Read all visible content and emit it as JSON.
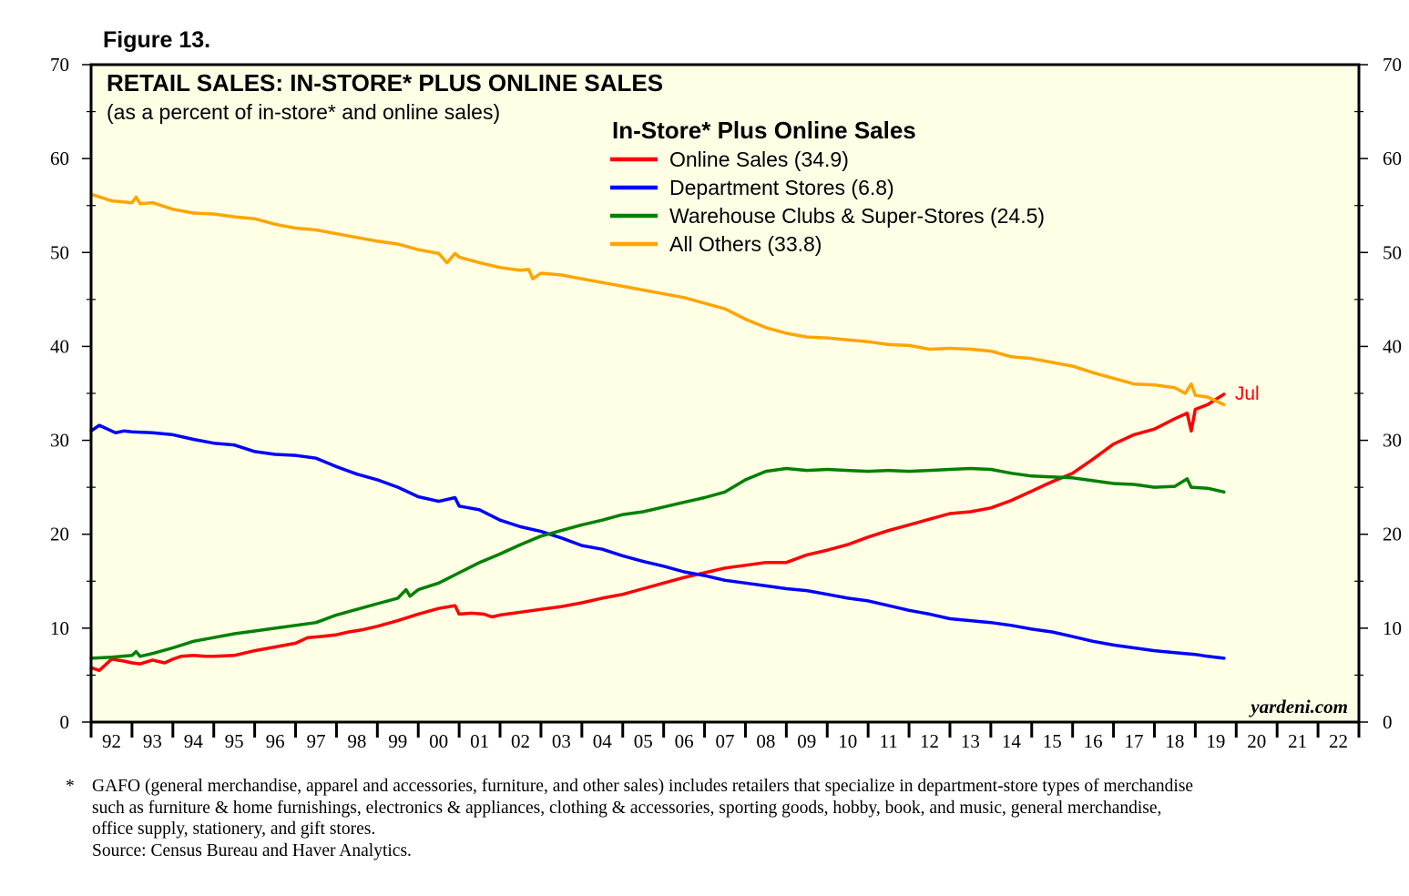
{
  "figure_label": "Figure 13.",
  "watermark": "yardeni.com",
  "footnote": {
    "marker": "*",
    "lines": [
      "GAFO (general merchandise, apparel and accessories, furniture, and other sales) includes retailers that specialize in department-store types of merchandise",
      "such as furniture & home furnishings, electronics & appliances, clothing & accessories, sporting goods, hobby, book, and music, general merchandise,",
      "office supply, stationery, and gift stores."
    ],
    "source": "Source: Census Bureau and Haver Analytics."
  },
  "chart_data": {
    "type": "line",
    "title": "RETAIL SALES: IN-STORE* PLUS ONLINE SALES",
    "subtitle": "(as a percent of in-store* and online sales)",
    "legend_title": "In-Store* Plus Online Sales",
    "legend_position": "top-center",
    "grid": false,
    "background_color": "#ffffe6",
    "ylim": [
      0,
      70
    ],
    "y_ticks": [
      0,
      10,
      20,
      30,
      40,
      50,
      60,
      70
    ],
    "y_ticks_both_sides": true,
    "x_range": [
      1992,
      2023
    ],
    "x_tick_labels": [
      "92",
      "93",
      "94",
      "95",
      "96",
      "97",
      "98",
      "99",
      "00",
      "01",
      "02",
      "03",
      "04",
      "05",
      "06",
      "07",
      "08",
      "09",
      "10",
      "11",
      "12",
      "13",
      "14",
      "15",
      "16",
      "17",
      "18",
      "19",
      "20",
      "21",
      "22"
    ],
    "annotation": {
      "text": "Jul",
      "color": "#ff0000",
      "x": 2019.7,
      "y": 34.9
    },
    "series": [
      {
        "name": "Online Sales (34.9)",
        "color": "#ff0000",
        "points": [
          [
            1992.0,
            5.8
          ],
          [
            1992.2,
            5.5
          ],
          [
            1992.5,
            6.7
          ],
          [
            1992.8,
            6.5
          ],
          [
            1993.0,
            6.3
          ],
          [
            1993.2,
            6.2
          ],
          [
            1993.5,
            6.6
          ],
          [
            1993.8,
            6.3
          ],
          [
            1994.0,
            6.7
          ],
          [
            1994.2,
            7.0
          ],
          [
            1994.5,
            7.1
          ],
          [
            1994.8,
            7.0
          ],
          [
            1995.0,
            7.0
          ],
          [
            1995.5,
            7.1
          ],
          [
            1996.0,
            7.6
          ],
          [
            1996.5,
            8.0
          ],
          [
            1997.0,
            8.4
          ],
          [
            1997.3,
            9.0
          ],
          [
            1997.6,
            9.1
          ],
          [
            1998.0,
            9.3
          ],
          [
            1998.3,
            9.6
          ],
          [
            1998.6,
            9.8
          ],
          [
            1999.0,
            10.2
          ],
          [
            1999.5,
            10.8
          ],
          [
            2000.0,
            11.5
          ],
          [
            2000.5,
            12.1
          ],
          [
            2000.9,
            12.4
          ],
          [
            2001.0,
            11.5
          ],
          [
            2001.3,
            11.6
          ],
          [
            2001.6,
            11.5
          ],
          [
            2001.8,
            11.2
          ],
          [
            2002.0,
            11.4
          ],
          [
            2002.5,
            11.7
          ],
          [
            2003.0,
            12.0
          ],
          [
            2003.5,
            12.3
          ],
          [
            2004.0,
            12.7
          ],
          [
            2004.5,
            13.2
          ],
          [
            2005.0,
            13.6
          ],
          [
            2005.5,
            14.2
          ],
          [
            2006.0,
            14.8
          ],
          [
            2006.5,
            15.4
          ],
          [
            2007.0,
            15.9
          ],
          [
            2007.5,
            16.4
          ],
          [
            2008.0,
            16.7
          ],
          [
            2008.5,
            17.0
          ],
          [
            2009.0,
            17.0
          ],
          [
            2009.5,
            17.8
          ],
          [
            2010.0,
            18.3
          ],
          [
            2010.5,
            18.9
          ],
          [
            2011.0,
            19.7
          ],
          [
            2011.5,
            20.4
          ],
          [
            2012.0,
            21.0
          ],
          [
            2012.5,
            21.6
          ],
          [
            2013.0,
            22.2
          ],
          [
            2013.5,
            22.4
          ],
          [
            2014.0,
            22.8
          ],
          [
            2014.5,
            23.6
          ],
          [
            2015.0,
            24.6
          ],
          [
            2015.5,
            25.6
          ],
          [
            2016.0,
            26.5
          ],
          [
            2016.5,
            28.0
          ],
          [
            2017.0,
            29.6
          ],
          [
            2017.5,
            30.6
          ],
          [
            2018.0,
            31.2
          ],
          [
            2018.5,
            32.3
          ],
          [
            2018.8,
            32.9
          ],
          [
            2018.9,
            31.0
          ],
          [
            2019.0,
            33.3
          ],
          [
            2019.3,
            33.8
          ],
          [
            2019.55,
            34.5
          ],
          [
            2019.7,
            34.9
          ]
        ]
      },
      {
        "name": "Department Stores (6.8)",
        "color": "#0000ff",
        "points": [
          [
            1992.0,
            31.0
          ],
          [
            1992.2,
            31.6
          ],
          [
            1992.4,
            31.2
          ],
          [
            1992.6,
            30.8
          ],
          [
            1992.8,
            31.0
          ],
          [
            1993.0,
            30.9
          ],
          [
            1993.5,
            30.8
          ],
          [
            1994.0,
            30.6
          ],
          [
            1994.5,
            30.1
          ],
          [
            1995.0,
            29.7
          ],
          [
            1995.5,
            29.5
          ],
          [
            1996.0,
            28.8
          ],
          [
            1996.5,
            28.5
          ],
          [
            1997.0,
            28.4
          ],
          [
            1997.5,
            28.1
          ],
          [
            1998.0,
            27.2
          ],
          [
            1998.5,
            26.4
          ],
          [
            1999.0,
            25.8
          ],
          [
            1999.5,
            25.0
          ],
          [
            2000.0,
            24.0
          ],
          [
            2000.5,
            23.5
          ],
          [
            2000.9,
            23.9
          ],
          [
            2001.0,
            23.0
          ],
          [
            2001.5,
            22.6
          ],
          [
            2002.0,
            21.5
          ],
          [
            2002.5,
            20.8
          ],
          [
            2003.0,
            20.3
          ],
          [
            2003.5,
            19.6
          ],
          [
            2004.0,
            18.8
          ],
          [
            2004.5,
            18.4
          ],
          [
            2005.0,
            17.7
          ],
          [
            2005.5,
            17.1
          ],
          [
            2006.0,
            16.6
          ],
          [
            2006.5,
            16.0
          ],
          [
            2007.0,
            15.6
          ],
          [
            2007.5,
            15.1
          ],
          [
            2008.0,
            14.8
          ],
          [
            2008.5,
            14.5
          ],
          [
            2009.0,
            14.2
          ],
          [
            2009.5,
            14.0
          ],
          [
            2010.0,
            13.6
          ],
          [
            2010.5,
            13.2
          ],
          [
            2011.0,
            12.9
          ],
          [
            2011.5,
            12.4
          ],
          [
            2012.0,
            11.9
          ],
          [
            2012.5,
            11.5
          ],
          [
            2013.0,
            11.0
          ],
          [
            2013.5,
            10.8
          ],
          [
            2014.0,
            10.6
          ],
          [
            2014.5,
            10.3
          ],
          [
            2015.0,
            9.9
          ],
          [
            2015.5,
            9.6
          ],
          [
            2016.0,
            9.1
          ],
          [
            2016.5,
            8.6
          ],
          [
            2017.0,
            8.2
          ],
          [
            2017.5,
            7.9
          ],
          [
            2018.0,
            7.6
          ],
          [
            2018.5,
            7.4
          ],
          [
            2019.0,
            7.2
          ],
          [
            2019.3,
            7.0
          ],
          [
            2019.7,
            6.8
          ]
        ]
      },
      {
        "name": "Warehouse Clubs & Super-Stores (24.5)",
        "color": "#008000",
        "points": [
          [
            1992.0,
            6.8
          ],
          [
            1992.5,
            6.9
          ],
          [
            1993.0,
            7.1
          ],
          [
            1993.1,
            7.5
          ],
          [
            1993.2,
            7.0
          ],
          [
            1993.5,
            7.3
          ],
          [
            1994.0,
            7.9
          ],
          [
            1994.5,
            8.6
          ],
          [
            1995.0,
            9.0
          ],
          [
            1995.5,
            9.4
          ],
          [
            1996.0,
            9.7
          ],
          [
            1996.5,
            10.0
          ],
          [
            1997.0,
            10.3
          ],
          [
            1997.5,
            10.6
          ],
          [
            1998.0,
            11.4
          ],
          [
            1998.5,
            12.0
          ],
          [
            1999.0,
            12.6
          ],
          [
            1999.5,
            13.2
          ],
          [
            1999.7,
            14.1
          ],
          [
            1999.8,
            13.4
          ],
          [
            2000.0,
            14.1
          ],
          [
            2000.5,
            14.8
          ],
          [
            2001.0,
            15.9
          ],
          [
            2001.5,
            17.0
          ],
          [
            2002.0,
            17.9
          ],
          [
            2002.5,
            18.9
          ],
          [
            2003.0,
            19.8
          ],
          [
            2003.5,
            20.4
          ],
          [
            2004.0,
            21.0
          ],
          [
            2004.5,
            21.5
          ],
          [
            2005.0,
            22.1
          ],
          [
            2005.5,
            22.4
          ],
          [
            2006.0,
            22.9
          ],
          [
            2006.5,
            23.4
          ],
          [
            2007.0,
            23.9
          ],
          [
            2007.5,
            24.5
          ],
          [
            2008.0,
            25.8
          ],
          [
            2008.5,
            26.7
          ],
          [
            2009.0,
            27.0
          ],
          [
            2009.5,
            26.8
          ],
          [
            2010.0,
            26.9
          ],
          [
            2010.5,
            26.8
          ],
          [
            2011.0,
            26.7
          ],
          [
            2011.5,
            26.8
          ],
          [
            2012.0,
            26.7
          ],
          [
            2012.5,
            26.8
          ],
          [
            2013.0,
            26.9
          ],
          [
            2013.5,
            27.0
          ],
          [
            2014.0,
            26.9
          ],
          [
            2014.5,
            26.5
          ],
          [
            2015.0,
            26.2
          ],
          [
            2015.5,
            26.1
          ],
          [
            2016.0,
            26.0
          ],
          [
            2016.5,
            25.7
          ],
          [
            2017.0,
            25.4
          ],
          [
            2017.5,
            25.3
          ],
          [
            2018.0,
            25.0
          ],
          [
            2018.5,
            25.1
          ],
          [
            2018.8,
            25.9
          ],
          [
            2018.9,
            25.0
          ],
          [
            2019.3,
            24.9
          ],
          [
            2019.7,
            24.5
          ]
        ]
      },
      {
        "name": "All Others (33.8)",
        "color": "#ffa500",
        "points": [
          [
            1992.0,
            56.2
          ],
          [
            1992.5,
            55.5
          ],
          [
            1993.0,
            55.3
          ],
          [
            1993.1,
            55.9
          ],
          [
            1993.2,
            55.2
          ],
          [
            1993.5,
            55.3
          ],
          [
            1994.0,
            54.6
          ],
          [
            1994.5,
            54.2
          ],
          [
            1995.0,
            54.1
          ],
          [
            1995.5,
            53.8
          ],
          [
            1996.0,
            53.6
          ],
          [
            1996.5,
            53.0
          ],
          [
            1997.0,
            52.6
          ],
          [
            1997.5,
            52.4
          ],
          [
            1998.0,
            52.0
          ],
          [
            1998.5,
            51.6
          ],
          [
            1999.0,
            51.2
          ],
          [
            1999.5,
            50.9
          ],
          [
            2000.0,
            50.3
          ],
          [
            2000.5,
            49.9
          ],
          [
            2000.7,
            48.9
          ],
          [
            2000.9,
            49.9
          ],
          [
            2001.0,
            49.5
          ],
          [
            2001.5,
            48.9
          ],
          [
            2002.0,
            48.4
          ],
          [
            2002.5,
            48.1
          ],
          [
            2002.7,
            48.2
          ],
          [
            2002.8,
            47.2
          ],
          [
            2003.0,
            47.8
          ],
          [
            2003.5,
            47.6
          ],
          [
            2004.0,
            47.2
          ],
          [
            2004.5,
            46.8
          ],
          [
            2005.0,
            46.4
          ],
          [
            2005.5,
            46.0
          ],
          [
            2006.0,
            45.6
          ],
          [
            2006.5,
            45.2
          ],
          [
            2007.0,
            44.6
          ],
          [
            2007.5,
            44.0
          ],
          [
            2008.0,
            42.9
          ],
          [
            2008.5,
            42.0
          ],
          [
            2009.0,
            41.4
          ],
          [
            2009.5,
            41.0
          ],
          [
            2010.0,
            40.9
          ],
          [
            2010.5,
            40.7
          ],
          [
            2011.0,
            40.5
          ],
          [
            2011.5,
            40.2
          ],
          [
            2012.0,
            40.1
          ],
          [
            2012.5,
            39.7
          ],
          [
            2013.0,
            39.8
          ],
          [
            2013.5,
            39.7
          ],
          [
            2014.0,
            39.5
          ],
          [
            2014.5,
            38.9
          ],
          [
            2015.0,
            38.7
          ],
          [
            2015.5,
            38.3
          ],
          [
            2016.0,
            37.9
          ],
          [
            2016.5,
            37.2
          ],
          [
            2017.0,
            36.6
          ],
          [
            2017.5,
            36.0
          ],
          [
            2018.0,
            35.9
          ],
          [
            2018.5,
            35.6
          ],
          [
            2018.75,
            35.0
          ],
          [
            2018.9,
            36.0
          ],
          [
            2019.0,
            34.8
          ],
          [
            2019.3,
            34.6
          ],
          [
            2019.7,
            33.8
          ]
        ]
      }
    ]
  }
}
